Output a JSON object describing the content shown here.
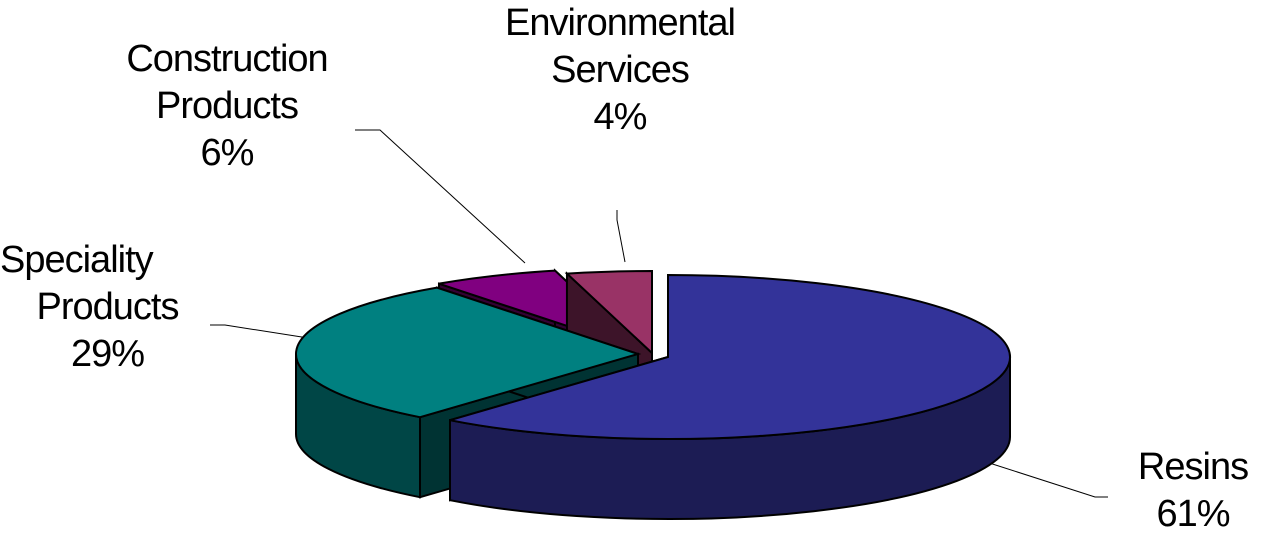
{
  "chart_data": {
    "type": "pie",
    "style": "3d-exploded",
    "slices": [
      {
        "name": "Resins",
        "label": "Resins",
        "percent_label": "61%",
        "value": 61,
        "color": "#333399"
      },
      {
        "name": "Speciality Products",
        "label_lines": [
          "Speciality",
          "Products"
        ],
        "percent_label": "29%",
        "value": 29,
        "color": "#008080"
      },
      {
        "name": "Construction Products",
        "label_lines": [
          "Construction",
          "Products"
        ],
        "percent_label": "6%",
        "value": 6,
        "color": "#800080"
      },
      {
        "name": "Environmental Services",
        "label_lines": [
          "Environmental",
          "Services"
        ],
        "percent_label": "4%",
        "value": 4,
        "color": "#993366"
      }
    ],
    "legend": "none"
  }
}
